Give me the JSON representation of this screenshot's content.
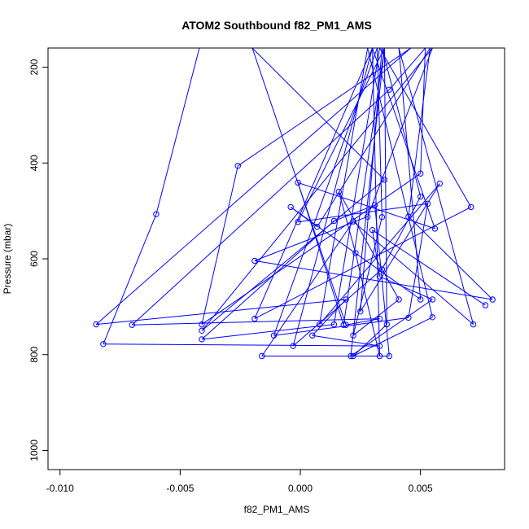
{
  "chart_data": {
    "type": "scatter",
    "title": "ATOM2 Southbound f82_PM1_AMS",
    "xlabel": "f82_PM1_AMS",
    "ylabel": "Pressure (mbar)",
    "xlim": [
      -0.0105,
      0.0085
    ],
    "ylim": [
      1040,
      160
    ],
    "y_reversed": true,
    "xticks": [
      -0.01,
      -0.005,
      0.0,
      0.005
    ],
    "xtick_labels": [
      "-0.010",
      "-0.005",
      "0.000",
      "0.005"
    ],
    "yticks": [
      200,
      400,
      600,
      800,
      1000
    ],
    "ytick_labels": [
      "200",
      "400",
      "600",
      "800",
      "1000"
    ],
    "grid": false,
    "series_color": "#0000ff",
    "series": [
      {
        "points": [
          [
            -0.0042,
            160
          ],
          [
            -0.006,
            507
          ],
          [
            -0.0082,
            778
          ],
          [
            0.0033,
            782
          ],
          [
            0.0005,
            760
          ],
          [
            0.0019,
            685
          ],
          [
            -0.0085,
            737
          ],
          [
            0.0046,
            160
          ],
          [
            -0.0026,
            406
          ],
          [
            -0.0041,
            737
          ],
          [
            0.005,
            422
          ],
          [
            0.0052,
            160
          ],
          [
            0.0037,
            247
          ],
          [
            -0.007,
            738
          ],
          [
            0.0033,
            725
          ],
          [
            0.0019,
            738
          ],
          [
            -0.002,
            160
          ],
          [
            0.0035,
            435
          ],
          [
            -0.0041,
            750
          ],
          [
            0.0055,
            160
          ],
          [
            0.0028,
            512
          ],
          [
            -0.0019,
            604
          ],
          [
            0.008,
            685
          ],
          [
            0.0045,
            512
          ],
          [
            0.0054,
            160
          ],
          [
            0.0007,
            533
          ],
          [
            -0.0004,
            492
          ],
          [
            0.005,
            685
          ],
          [
            0.0041,
            160
          ],
          [
            0.0072,
            737
          ],
          [
            0.0022,
            522
          ],
          [
            -0.0016,
            803
          ],
          [
            0.0037,
            803
          ],
          [
            0.0031,
            488
          ],
          [
            0.0014,
            521
          ],
          [
            -0.0041,
            768
          ],
          [
            0.0014,
            737
          ],
          [
            0.0033,
            160
          ],
          [
            0.0071,
            492
          ],
          [
            -0.0019,
            725
          ],
          [
            0.003,
            160
          ],
          [
            -0.0003,
            782
          ],
          [
            0.0034,
            622
          ],
          [
            0.005,
            470
          ],
          [
            0.0034,
            160
          ],
          [
            0.0025,
            710
          ],
          [
            0.0058,
            443
          ],
          [
            0.0008,
            737
          ],
          [
            0.0028,
            160
          ],
          [
            0.0055,
            722
          ],
          [
            0.0022,
            803
          ],
          [
            0.0036,
            737
          ],
          [
            0.0035,
            160
          ],
          [
            -0.0001,
            523
          ],
          [
            0.0053,
            485
          ],
          [
            0.0045,
            723
          ],
          [
            -0.0011,
            760
          ],
          [
            0.0032,
            160
          ],
          [
            0.0034,
            513
          ],
          [
            0.0022,
            760
          ],
          [
            0.0041,
            685
          ],
          [
            0.0016,
            460
          ],
          [
            0.0023,
            588
          ],
          [
            0.0033,
            803
          ],
          [
            0.003,
            160
          ],
          [
            0.0056,
            537
          ],
          [
            -0.0001,
            441
          ],
          [
            0.0018,
            738
          ],
          [
            0.0035,
            160
          ],
          [
            0.0021,
            803
          ],
          [
            0.0055,
            685
          ],
          [
            0.0033,
            637
          ],
          [
            0.003,
            540
          ],
          [
            0.0077,
            697
          ]
        ]
      }
    ]
  }
}
